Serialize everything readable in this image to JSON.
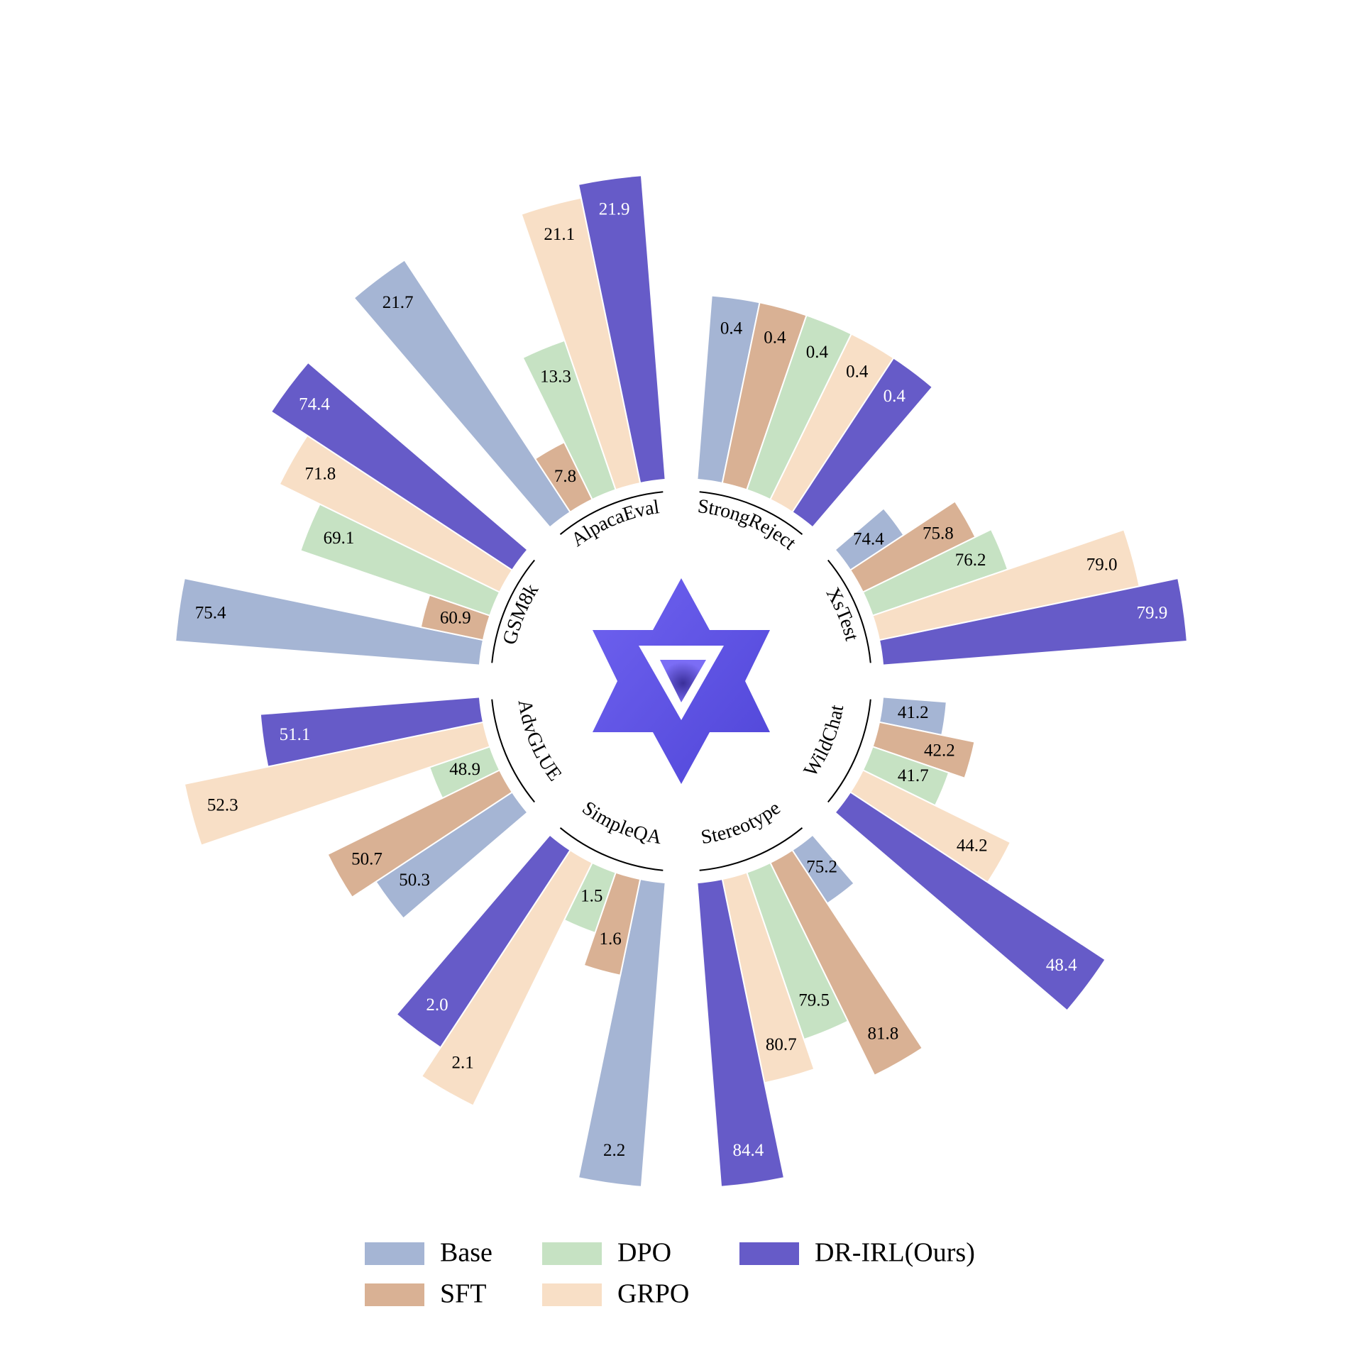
{
  "chart_data": {
    "type": "radial_bar",
    "categories": [
      "StrongReject",
      "XsTest",
      "WildChat",
      "Stereotype",
      "SimpleQA",
      "AdvGLUE",
      "GSM8k",
      "AlpacaEval"
    ],
    "series": [
      {
        "name": "Base",
        "color": "#a5b5d4",
        "values": [
          0.4,
          74.4,
          41.2,
          75.2,
          2.2,
          50.3,
          75.4,
          21.7
        ],
        "value_labels": [
          "0.4",
          "74.4",
          "41.2",
          "75.2",
          "2.2",
          "50.3",
          "75.4",
          "21.7"
        ]
      },
      {
        "name": "SFT",
        "color": "#d9b194",
        "values": [
          0.4,
          75.8,
          42.2,
          81.8,
          1.6,
          50.7,
          60.9,
          7.8
        ],
        "value_labels": [
          "0.4",
          "75.8",
          "42.2",
          "81.8",
          "1.6",
          "50.7",
          "60.9",
          "7.8"
        ]
      },
      {
        "name": "DPO",
        "color": "#c6e2c3",
        "values": [
          0.4,
          76.2,
          41.7,
          79.5,
          1.5,
          48.9,
          69.1,
          13.3
        ],
        "value_labels": [
          "0.4",
          "76.2",
          "41.7",
          "79.5",
          "1.5",
          "48.9",
          "69.1",
          "13.3"
        ]
      },
      {
        "name": "GRPO",
        "color": "#f8dfc6",
        "values": [
          0.4,
          79.0,
          44.2,
          80.7,
          2.1,
          52.3,
          71.8,
          21.1
        ],
        "value_labels": [
          "0.4",
          "79.0",
          "44.2",
          "80.7",
          "2.1",
          "52.3",
          "71.8",
          "21.1"
        ]
      },
      {
        "name": "DR-IRL(Ours)",
        "color": "#665bc8",
        "values": [
          0.4,
          79.9,
          48.4,
          84.4,
          2.0,
          51.1,
          74.4,
          21.9
        ],
        "value_labels": [
          "0.4",
          "79.9",
          "48.4",
          "84.4",
          "2.0",
          "51.1",
          "74.4",
          "21.9"
        ]
      }
    ],
    "legend": "bottom"
  }
}
